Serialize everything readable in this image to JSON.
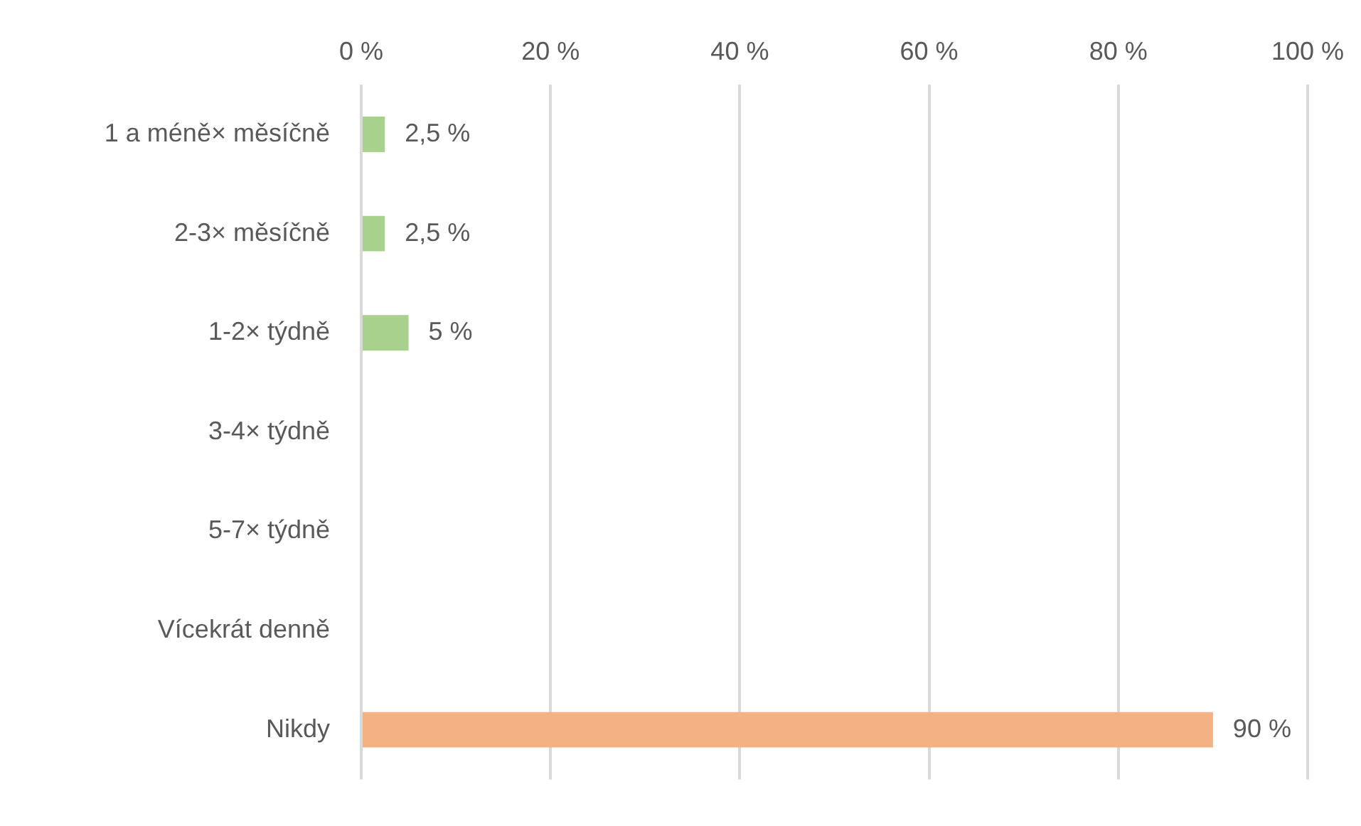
{
  "chart_data": {
    "type": "bar",
    "orientation": "horizontal",
    "categories": [
      "1 a méně× měsíčně",
      "2-3× měsíčně",
      "1-2× týdně",
      "3-4× týdně",
      "5-7× týdně",
      "Vícekrát denně",
      "Nikdy"
    ],
    "values": [
      2.5,
      2.5,
      5,
      null,
      null,
      null,
      90
    ],
    "colors": [
      "#a9d18e",
      "#a9d18e",
      "#a9d18e",
      "#a9d18e",
      "#a9d18e",
      "#a9d18e",
      "#f4b183"
    ],
    "value_labels": [
      "2,5 %",
      "2,5 %",
      "5 %",
      null,
      null,
      null,
      "90 %"
    ],
    "xlim": [
      0,
      100
    ],
    "xticks": [
      {
        "value": 0,
        "label": "0 %"
      },
      {
        "value": 20,
        "label": "20 %"
      },
      {
        "value": 40,
        "label": "40 %"
      },
      {
        "value": 60,
        "label": "60 %"
      },
      {
        "value": 80,
        "label": "80 %"
      },
      {
        "value": 100,
        "label": "100 %"
      }
    ],
    "grid": "x",
    "legend": false
  }
}
